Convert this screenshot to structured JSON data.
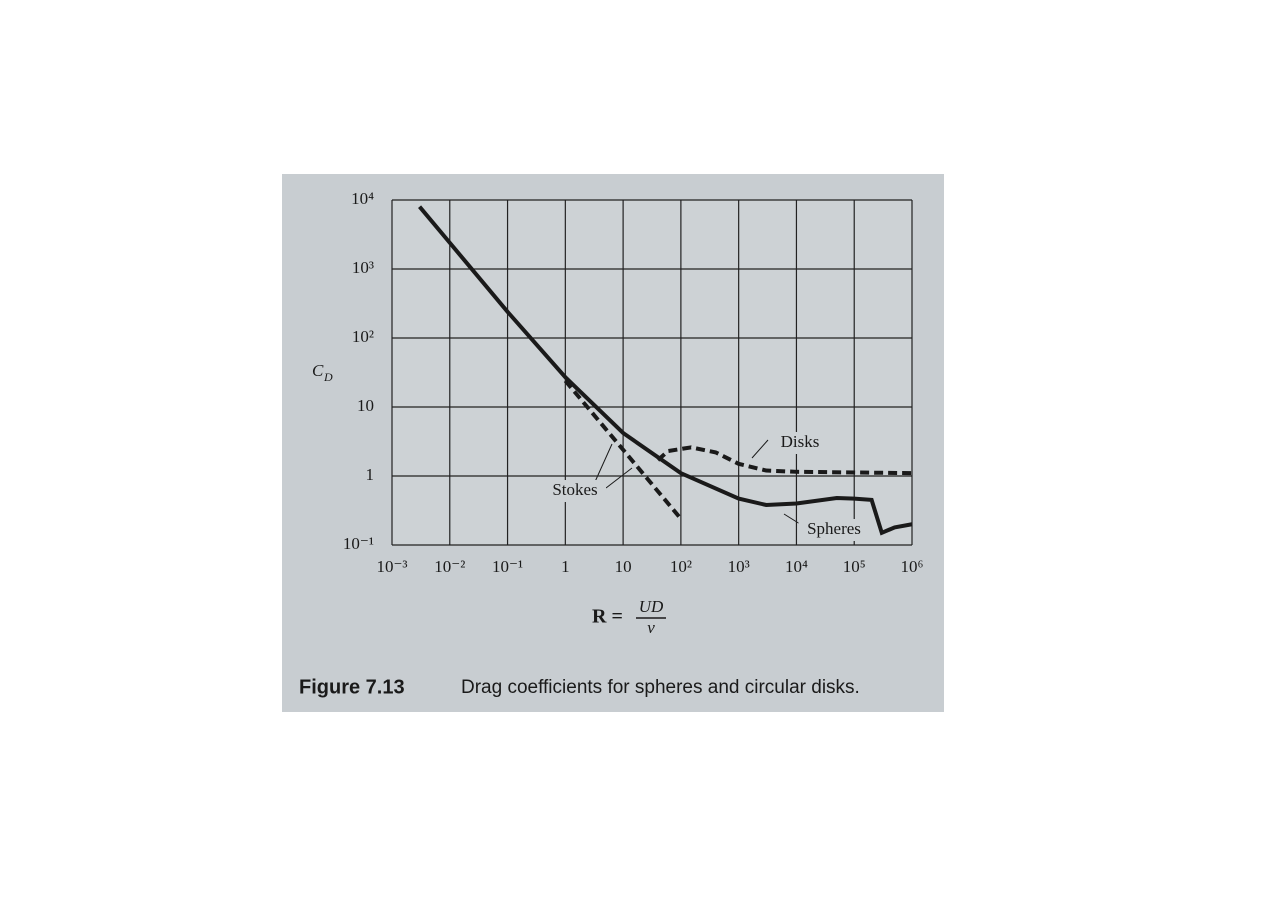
{
  "chart_data": {
    "type": "line",
    "figure_label": "Figure 7.13",
    "caption": "Drag coefficients for spheres and circular disks.",
    "x_label": {
      "lhs": "R =",
      "numerator": "UD",
      "denominator": "ν"
    },
    "y_label": {
      "symbol": "C",
      "subscript": "D"
    },
    "xlog": true,
    "ylog": true,
    "grid": true,
    "xlim": [
      0.001,
      1000000
    ],
    "ylim": [
      0.1,
      10000
    ],
    "xticks": [
      {
        "value": 0.001,
        "label": "10⁻³"
      },
      {
        "value": 0.01,
        "label": "10⁻²"
      },
      {
        "value": 0.1,
        "label": "10⁻¹"
      },
      1,
      10,
      {
        "value": 100,
        "label": "10²"
      },
      {
        "value": 1000,
        "label": "10³"
      },
      {
        "value": 10000,
        "label": "10⁴"
      },
      {
        "value": 100000,
        "label": "10⁵"
      },
      {
        "value": 1000000,
        "label": "10⁶"
      }
    ],
    "yticks": [
      {
        "value": 0.1,
        "label": "10⁻¹"
      },
      1,
      10,
      {
        "value": 100,
        "label": "10²"
      },
      {
        "value": 1000,
        "label": "10³"
      },
      {
        "value": 10000,
        "label": "10⁴"
      }
    ],
    "series": [
      {
        "name": "Spheres",
        "color": "#1a1a1a",
        "style": "solid",
        "x": [
          0.003,
          0.01,
          0.1,
          1,
          10,
          100,
          1000,
          3000,
          10000,
          50000,
          100000,
          200000,
          300000,
          500000,
          1000000
        ],
        "values": [
          8000,
          2400,
          240,
          27,
          4.2,
          1.1,
          0.47,
          0.38,
          0.4,
          0.48,
          0.47,
          0.45,
          0.15,
          0.18,
          0.2
        ]
      },
      {
        "name": "Disks",
        "color": "#1a1a1a",
        "style": "dashed",
        "x": [
          40,
          60,
          150,
          400,
          1000,
          3000,
          10000,
          1000000
        ],
        "values": [
          1.7,
          2.3,
          2.6,
          2.2,
          1.5,
          1.2,
          1.15,
          1.1
        ]
      },
      {
        "name": "Stokes",
        "color": "#1a1a1a",
        "style": "dashed",
        "x": [
          1,
          10,
          100
        ],
        "values": [
          24,
          2.4,
          0.24
        ]
      }
    ]
  }
}
